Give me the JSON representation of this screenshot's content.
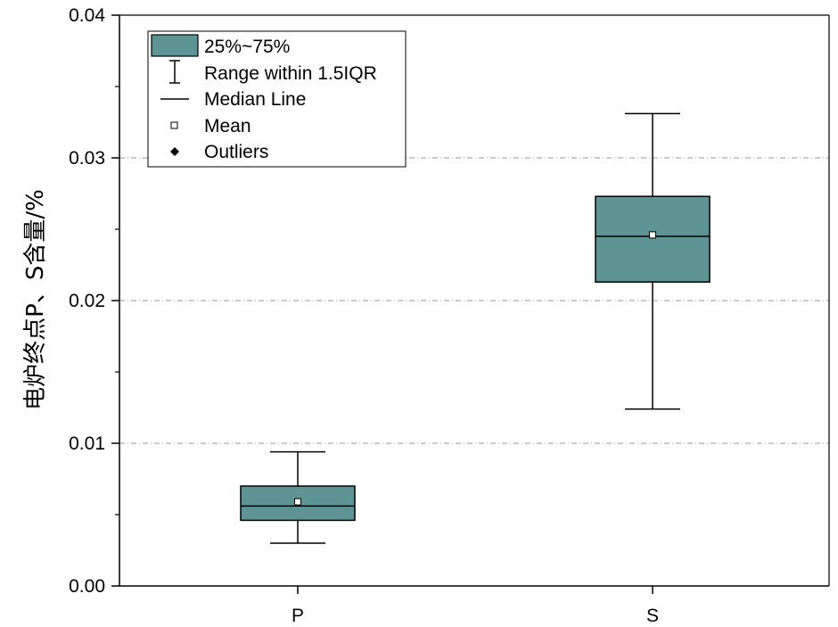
{
  "chart_data": {
    "type": "box",
    "title": "",
    "xlabel": "",
    "ylabel": "电炉终点P、S含量/%",
    "ylim": [
      0,
      0.04
    ],
    "yticks": [
      "0.00",
      "0.01",
      "0.02",
      "0.03",
      "0.04"
    ],
    "ytick_values": [
      0,
      0.01,
      0.02,
      0.03,
      0.04
    ],
    "grid": "horizontal dash-dot",
    "legend_position": "top-left",
    "categories": [
      "P",
      "S"
    ],
    "boxes": [
      {
        "category": "P",
        "whisker_low": 0.003,
        "q1": 0.0046,
        "median": 0.0056,
        "mean": 0.0059,
        "q3": 0.007,
        "whisker_high": 0.0094
      },
      {
        "category": "S",
        "whisker_low": 0.0124,
        "q1": 0.0213,
        "median": 0.0245,
        "mean": 0.0246,
        "q3": 0.0273,
        "whisker_high": 0.0331
      }
    ],
    "legend": [
      "25%~75%",
      "Range within 1.5IQR",
      "Median Line",
      "Mean",
      "Outliers"
    ],
    "colors": {
      "box_fill": "#5f9494",
      "line": "#000000",
      "grid": "#999999"
    }
  }
}
